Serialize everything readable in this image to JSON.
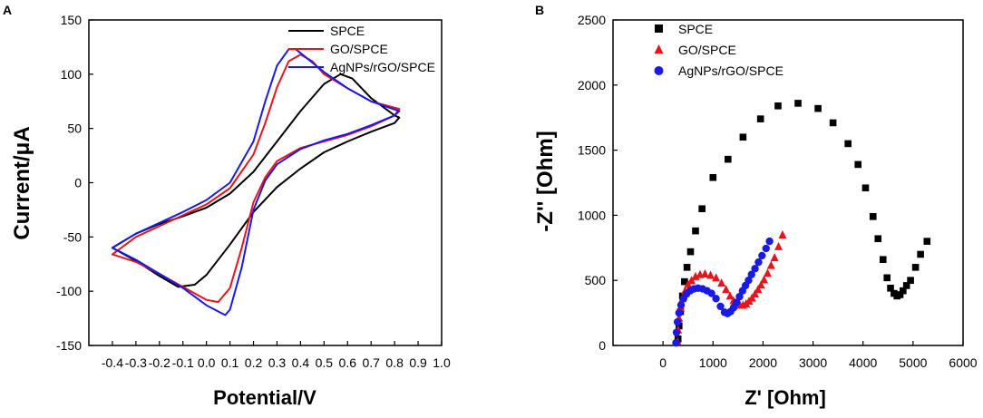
{
  "colors": {
    "spce": "#000000",
    "go": "#e8141c",
    "ag": "#1a1ae6"
  },
  "chart_data": [
    {
      "panel": "A",
      "type": "line",
      "xlabel": "Potential/V",
      "ylabel": "Current/μA",
      "xlim": [
        -0.5,
        1.0
      ],
      "ylim": [
        -150,
        150
      ],
      "xticks": [
        -0.4,
        -0.3,
        -0.2,
        -0.1,
        0.0,
        0.1,
        0.2,
        0.3,
        0.4,
        0.5,
        0.6,
        0.7,
        0.8,
        0.9,
        1.0
      ],
      "xtick_labels": [
        "-0.4",
        "-0.3",
        "-0.2",
        "-0.1",
        "0.0",
        "0.1",
        "0.2",
        "0.3",
        "0.4",
        "0.5",
        "0.6",
        "0.7",
        "0.8",
        "0.9",
        "1.0"
      ],
      "yticks": [
        -150,
        -100,
        -50,
        0,
        50,
        100,
        150
      ],
      "ytick_labels": [
        "-150",
        "-100",
        "-50",
        "0",
        "50",
        "100",
        "150"
      ],
      "legend": [
        "SPCE",
        "GO/SPCE",
        "AgNPs/rGO/SPCE"
      ],
      "series": [
        {
          "name": "SPCE",
          "color": "#000000",
          "x": [
            -0.4,
            -0.3,
            -0.2,
            -0.1,
            0.0,
            0.1,
            0.2,
            0.3,
            0.4,
            0.5,
            0.57,
            0.62,
            0.7,
            0.8,
            0.82,
            0.8,
            0.7,
            0.6,
            0.5,
            0.4,
            0.3,
            0.2,
            0.1,
            0.0,
            -0.05,
            -0.12,
            -0.2,
            -0.3,
            -0.4
          ],
          "y": [
            -60,
            -47,
            -38,
            -31,
            -23,
            -10,
            10,
            38,
            66,
            91,
            100,
            96,
            78,
            62,
            60,
            55,
            47,
            38,
            28,
            13,
            -4,
            -27,
            -57,
            -85,
            -94,
            -96,
            -86,
            -72,
            -60
          ]
        },
        {
          "name": "GO/SPCE",
          "color": "#e8141c",
          "x": [
            -0.4,
            -0.3,
            -0.2,
            -0.1,
            0.0,
            0.1,
            0.2,
            0.25,
            0.3,
            0.35,
            0.4,
            0.45,
            0.5,
            0.6,
            0.7,
            0.82,
            0.8,
            0.7,
            0.6,
            0.5,
            0.4,
            0.3,
            0.25,
            0.2,
            0.15,
            0.1,
            0.05,
            0.0,
            -0.1,
            -0.2,
            -0.3,
            -0.4
          ],
          "y": [
            -66,
            -50,
            -40,
            -30,
            -20,
            -5,
            26,
            55,
            88,
            112,
            118,
            112,
            100,
            87,
            75,
            68,
            62,
            52,
            44,
            38,
            32,
            20,
            5,
            -18,
            -60,
            -97,
            -110,
            -108,
            -96,
            -84,
            -73,
            -66
          ]
        },
        {
          "name": "AgNPs/rGO/SPCE",
          "color": "#1a1ae6",
          "x": [
            -0.4,
            -0.3,
            -0.2,
            -0.1,
            0.0,
            0.1,
            0.2,
            0.25,
            0.3,
            0.35,
            0.38,
            0.42,
            0.5,
            0.6,
            0.7,
            0.82,
            0.8,
            0.7,
            0.6,
            0.5,
            0.4,
            0.3,
            0.25,
            0.2,
            0.15,
            0.1,
            0.08,
            0.0,
            -0.1,
            -0.2,
            -0.3,
            -0.4
          ],
          "y": [
            -60,
            -47,
            -37,
            -27,
            -16,
            0,
            38,
            75,
            108,
            123,
            123,
            116,
            102,
            87,
            75,
            66,
            62,
            53,
            45,
            39,
            31,
            17,
            2,
            -25,
            -78,
            -117,
            -122,
            -113,
            -97,
            -84,
            -71,
            -60
          ]
        }
      ]
    },
    {
      "panel": "B",
      "type": "scatter",
      "xlabel": "Z' [Ohm]",
      "ylabel": "-Z'' [Ohm]",
      "xlim": [
        -1000,
        6000
      ],
      "ylim": [
        0,
        2500
      ],
      "xticks": [
        0,
        1000,
        2000,
        3000,
        4000,
        5000,
        6000
      ],
      "xtick_labels": [
        "0",
        "1000",
        "2000",
        "3000",
        "4000",
        "5000",
        "6000"
      ],
      "yticks": [
        0,
        500,
        1000,
        1500,
        2000,
        2500
      ],
      "ytick_labels": [
        "0",
        "500",
        "1000",
        "1500",
        "2000",
        "2500"
      ],
      "legend": [
        "SPCE",
        "GO/SPCE",
        "AgNPs/rGO/SPCE"
      ],
      "series": [
        {
          "name": "SPCE",
          "color": "#000000",
          "marker": "square",
          "x": [
            300,
            320,
            350,
            390,
            430,
            480,
            550,
            650,
            780,
            1000,
            1300,
            1600,
            1950,
            2300,
            2700,
            3100,
            3400,
            3700,
            3900,
            4050,
            4200,
            4300,
            4400,
            4480,
            4550,
            4620,
            4680,
            4740,
            4800,
            4870,
            4950,
            5050,
            5150,
            5280
          ],
          "y": [
            50,
            150,
            260,
            380,
            490,
            600,
            720,
            880,
            1050,
            1290,
            1430,
            1600,
            1740,
            1840,
            1860,
            1820,
            1710,
            1550,
            1390,
            1210,
            990,
            820,
            660,
            520,
            440,
            400,
            380,
            390,
            420,
            460,
            500,
            600,
            700,
            800
          ]
        },
        {
          "name": "GO/SPCE",
          "color": "#e8141c",
          "marker": "triangle",
          "x": [
            290,
            300,
            320,
            350,
            390,
            440,
            500,
            570,
            650,
            740,
            840,
            950,
            1060,
            1170,
            1260,
            1340,
            1410,
            1480,
            1540,
            1600,
            1660,
            1720,
            1780,
            1840,
            1900,
            1960,
            2020,
            2090,
            2160,
            2230,
            2310,
            2390
          ],
          "y": [
            30,
            120,
            210,
            290,
            360,
            420,
            470,
            500,
            530,
            545,
            550,
            540,
            520,
            480,
            430,
            380,
            345,
            320,
            310,
            310,
            320,
            340,
            365,
            395,
            430,
            465,
            505,
            555,
            615,
            675,
            760,
            850
          ]
        },
        {
          "name": "AgNPs/rGO/SPCE",
          "color": "#1a1ae6",
          "marker": "circle",
          "x": [
            260,
            270,
            290,
            320,
            360,
            410,
            470,
            540,
            620,
            700,
            790,
            880,
            970,
            1060,
            1150,
            1230,
            1290,
            1350,
            1410,
            1470,
            1530,
            1590,
            1650,
            1710,
            1770,
            1840,
            1910,
            1980,
            2060,
            2130
          ],
          "y": [
            20,
            100,
            180,
            250,
            310,
            360,
            395,
            420,
            435,
            440,
            435,
            420,
            400,
            360,
            300,
            255,
            245,
            260,
            290,
            330,
            375,
            420,
            460,
            500,
            545,
            590,
            640,
            690,
            745,
            800
          ]
        }
      ]
    }
  ]
}
